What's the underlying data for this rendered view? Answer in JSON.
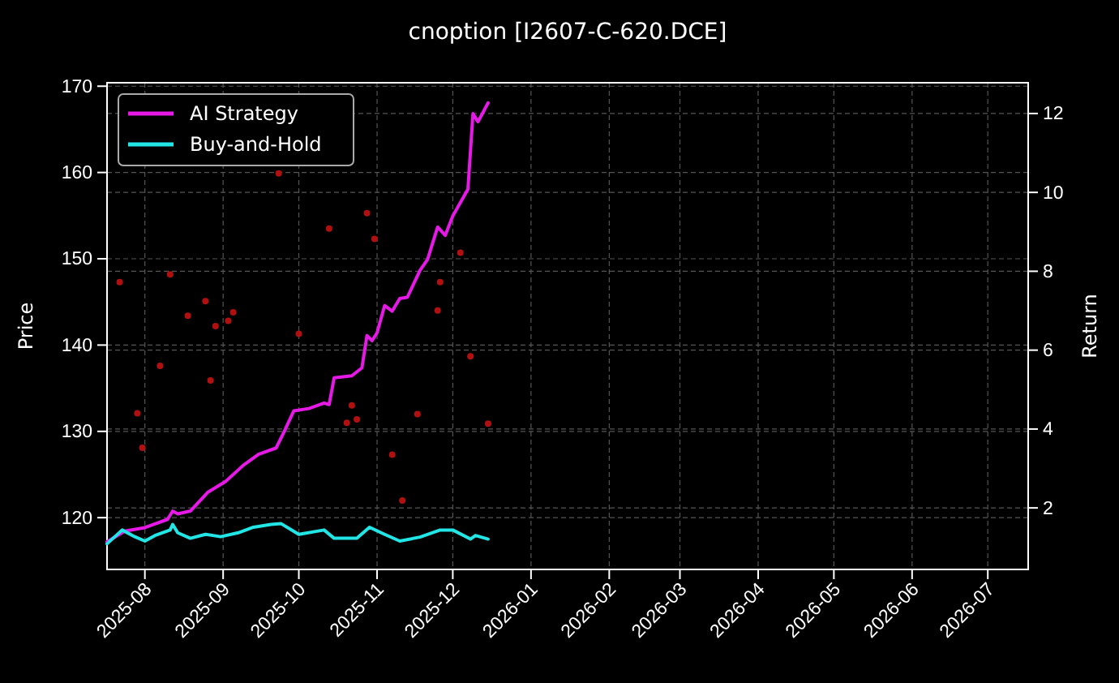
{
  "chart_data": {
    "type": "line",
    "title": "cnoption [I2607-C-620.DCE]",
    "ylabel": "Price",
    "y2label": "Return",
    "xlim": [
      "2025-07-17",
      "2026-07-17"
    ],
    "xticks": [
      "2025-08",
      "2025-09",
      "2025-10",
      "2025-11",
      "2025-12",
      "2026-01",
      "2026-02",
      "2026-03",
      "2026-04",
      "2026-05",
      "2026-06",
      "2026-07"
    ],
    "ylim": [
      114,
      170.4
    ],
    "yticks": [
      120,
      130,
      140,
      150,
      160,
      170
    ],
    "y2lim": [
      0.44,
      12.78
    ],
    "y2ticks": [
      2,
      4,
      6,
      8,
      10,
      12
    ],
    "grid": true,
    "legend": "top left",
    "series": [
      {
        "type": "scatter",
        "color": "#b01010",
        "x": [
          "2025-07-22",
          "2025-08-11",
          "2025-08-25",
          "2025-08-18",
          "2025-08-29",
          "2025-09-05",
          "2025-09-03",
          "2025-08-07",
          "2025-07-29",
          "2025-07-31",
          "2025-08-27",
          "2025-09-23",
          "2025-10-01",
          "2025-10-13",
          "2025-10-28",
          "2025-10-31",
          "2025-10-22",
          "2025-10-20",
          "2025-10-24",
          "2025-11-07",
          "2025-11-11",
          "2025-11-17",
          "2025-11-26",
          "2025-11-25",
          "2025-12-04",
          "2025-12-08",
          "2025-12-15"
        ],
        "values": [
          147.3,
          148.2,
          145.1,
          143.4,
          142.2,
          143.8,
          142.8,
          137.6,
          132.1,
          128.1,
          135.9,
          159.9,
          141.3,
          153.5,
          155.3,
          152.3,
          133.0,
          131.0,
          131.4,
          127.3,
          122.0,
          132.0,
          147.3,
          144.0,
          150.7,
          138.7,
          130.9
        ]
      },
      {
        "name": "AI Strategy",
        "color": "#e619e6",
        "axis": "y2",
        "x": [
          "2025-07-17",
          "2025-07-24",
          "2025-08-01",
          "2025-08-10",
          "2025-08-12",
          "2025-08-14",
          "2025-08-19",
          "2025-08-26",
          "2025-09-02",
          "2025-09-09",
          "2025-09-15",
          "2025-09-22",
          "2025-09-25",
          "2025-09-29",
          "2025-10-05",
          "2025-10-11",
          "2025-10-13",
          "2025-10-15",
          "2025-10-22",
          "2025-10-26",
          "2025-10-28",
          "2025-10-30",
          "2025-11-01",
          "2025-11-04",
          "2025-11-07",
          "2025-11-10",
          "2025-11-13",
          "2025-11-18",
          "2025-11-21",
          "2025-11-25",
          "2025-11-28",
          "2025-12-01",
          "2025-12-07",
          "2025-12-09",
          "2025-12-11",
          "2025-12-15"
        ],
        "values": [
          1.14,
          1.41,
          1.5,
          1.71,
          1.92,
          1.85,
          1.92,
          2.4,
          2.67,
          3.08,
          3.36,
          3.52,
          3.91,
          4.46,
          4.52,
          4.66,
          4.62,
          5.3,
          5.35,
          5.55,
          6.37,
          6.24,
          6.44,
          7.13,
          6.99,
          7.31,
          7.34,
          8.02,
          8.3,
          9.12,
          8.91,
          9.4,
          10.08,
          12.0,
          11.79,
          12.27
        ]
      },
      {
        "name": "Buy-and-Hold",
        "color": "#22e5e5",
        "axis": "y2",
        "x": [
          "2025-07-17",
          "2025-07-23",
          "2025-07-28",
          "2025-08-01",
          "2025-08-05",
          "2025-08-11",
          "2025-08-12",
          "2025-08-14",
          "2025-08-19",
          "2025-08-25",
          "2025-08-31",
          "2025-09-07",
          "2025-09-13",
          "2025-09-20",
          "2025-09-24",
          "2025-10-01",
          "2025-10-11",
          "2025-10-15",
          "2025-10-24",
          "2025-10-29",
          "2025-11-04",
          "2025-11-10",
          "2025-11-18",
          "2025-11-26",
          "2025-12-01",
          "2025-12-08",
          "2025-12-10",
          "2025-12-15"
        ],
        "values": [
          1.09,
          1.44,
          1.27,
          1.16,
          1.3,
          1.44,
          1.58,
          1.37,
          1.23,
          1.33,
          1.27,
          1.37,
          1.51,
          1.58,
          1.6,
          1.33,
          1.44,
          1.23,
          1.23,
          1.51,
          1.33,
          1.16,
          1.26,
          1.44,
          1.44,
          1.21,
          1.3,
          1.21
        ]
      }
    ]
  }
}
